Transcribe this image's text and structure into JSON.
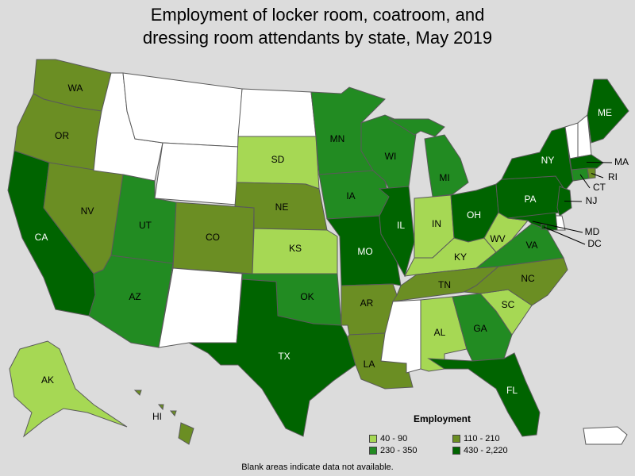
{
  "title": "Employment of locker room, coatroom, and\ndressing room attendants by state, May 2019",
  "legend": {
    "title": "Employment",
    "items": [
      {
        "label": "40 - 90",
        "color": "#a6d854"
      },
      {
        "label": "110 - 210",
        "color": "#6b8e23"
      },
      {
        "label": "230 - 350",
        "color": "#228b22"
      },
      {
        "label": "430 - 2,220",
        "color": "#006400"
      }
    ]
  },
  "footnote": "Blank areas indicate data not available.",
  "no_data_color": "#ffffff",
  "states": [
    {
      "abbr": "WA",
      "class": 1
    },
    {
      "abbr": "OR",
      "class": 1
    },
    {
      "abbr": "CA",
      "class": 3
    },
    {
      "abbr": "NV",
      "class": 1
    },
    {
      "abbr": "ID",
      "class": null
    },
    {
      "abbr": "MT",
      "class": null
    },
    {
      "abbr": "WY",
      "class": null
    },
    {
      "abbr": "UT",
      "class": 2
    },
    {
      "abbr": "AZ",
      "class": 2
    },
    {
      "abbr": "CO",
      "class": 1
    },
    {
      "abbr": "NM",
      "class": null
    },
    {
      "abbr": "ND",
      "class": null
    },
    {
      "abbr": "SD",
      "class": 0
    },
    {
      "abbr": "NE",
      "class": 1
    },
    {
      "abbr": "KS",
      "class": 0
    },
    {
      "abbr": "OK",
      "class": 2
    },
    {
      "abbr": "TX",
      "class": 3
    },
    {
      "abbr": "MN",
      "class": 2
    },
    {
      "abbr": "IA",
      "class": 2
    },
    {
      "abbr": "MO",
      "class": 3
    },
    {
      "abbr": "AR",
      "class": 1
    },
    {
      "abbr": "LA",
      "class": 1
    },
    {
      "abbr": "WI",
      "class": 2
    },
    {
      "abbr": "IL",
      "class": 3
    },
    {
      "abbr": "MI",
      "class": 2
    },
    {
      "abbr": "IN",
      "class": 0
    },
    {
      "abbr": "OH",
      "class": 3
    },
    {
      "abbr": "KY",
      "class": 0
    },
    {
      "abbr": "TN",
      "class": 1
    },
    {
      "abbr": "MS",
      "class": null
    },
    {
      "abbr": "AL",
      "class": 0
    },
    {
      "abbr": "GA",
      "class": 2
    },
    {
      "abbr": "FL",
      "class": 3
    },
    {
      "abbr": "SC",
      "class": 0
    },
    {
      "abbr": "NC",
      "class": 1
    },
    {
      "abbr": "VA",
      "class": 2
    },
    {
      "abbr": "WV",
      "class": 0
    },
    {
      "abbr": "PA",
      "class": 3
    },
    {
      "abbr": "NY",
      "class": 3
    },
    {
      "abbr": "ME",
      "class": 3
    },
    {
      "abbr": "VT",
      "class": null
    },
    {
      "abbr": "NH",
      "class": null
    },
    {
      "abbr": "MA",
      "class": 3
    },
    {
      "abbr": "RI",
      "class": 1
    },
    {
      "abbr": "CT",
      "class": 2
    },
    {
      "abbr": "NJ",
      "class": 3
    },
    {
      "abbr": "DE",
      "class": null
    },
    {
      "abbr": "MD",
      "class": 3
    },
    {
      "abbr": "DC",
      "class": 3
    },
    {
      "abbr": "AK",
      "class": 0
    },
    {
      "abbr": "HI",
      "class": 1
    },
    {
      "abbr": "PR",
      "class": null
    }
  ]
}
